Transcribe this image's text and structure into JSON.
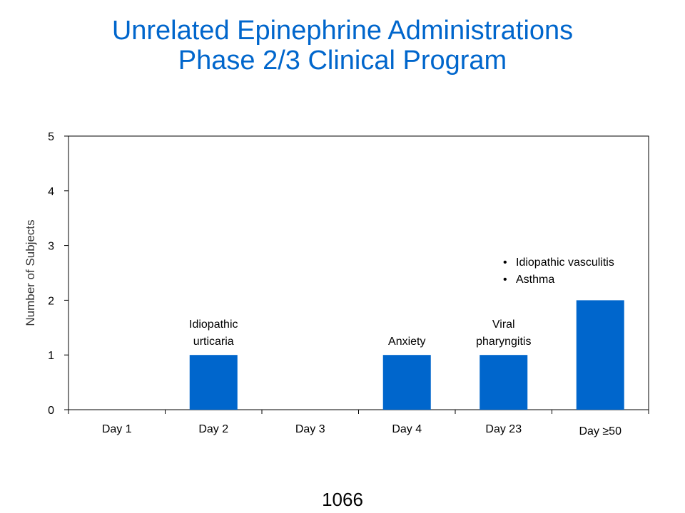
{
  "title": {
    "line1": "Unrelated Epinephrine Administrations",
    "line2": "Phase 2/3 Clinical Program"
  },
  "footer": {
    "page_number": "1066"
  },
  "colors": {
    "title": "#0066cc",
    "bar": "#0066cc",
    "bullet": "#0066cc"
  },
  "chart_data": {
    "type": "bar",
    "categories": [
      "Day 1",
      "Day 2",
      "Day 3",
      "Day 4",
      "Day 23",
      "Day ≥50"
    ],
    "values": [
      0,
      1,
      0,
      1,
      1,
      2
    ],
    "ylabel": "Number  of Subjects",
    "xlabel": "",
    "ylim": [
      0,
      5
    ],
    "yticks": [
      0,
      1,
      2,
      3,
      4,
      5
    ],
    "grid": false,
    "annotations": [
      {
        "category": "Day 2",
        "lines": [
          "Idiopathic",
          "urticaria"
        ]
      },
      {
        "category": "Day 4",
        "lines": [
          "Anxiety"
        ]
      },
      {
        "category": "Day 23",
        "lines": [
          "Viral",
          "pharyngitis"
        ]
      },
      {
        "category": "Day ≥50",
        "style": "bullets",
        "lines": [
          "Idiopathic vasculitis",
          "Asthma"
        ]
      }
    ]
  }
}
